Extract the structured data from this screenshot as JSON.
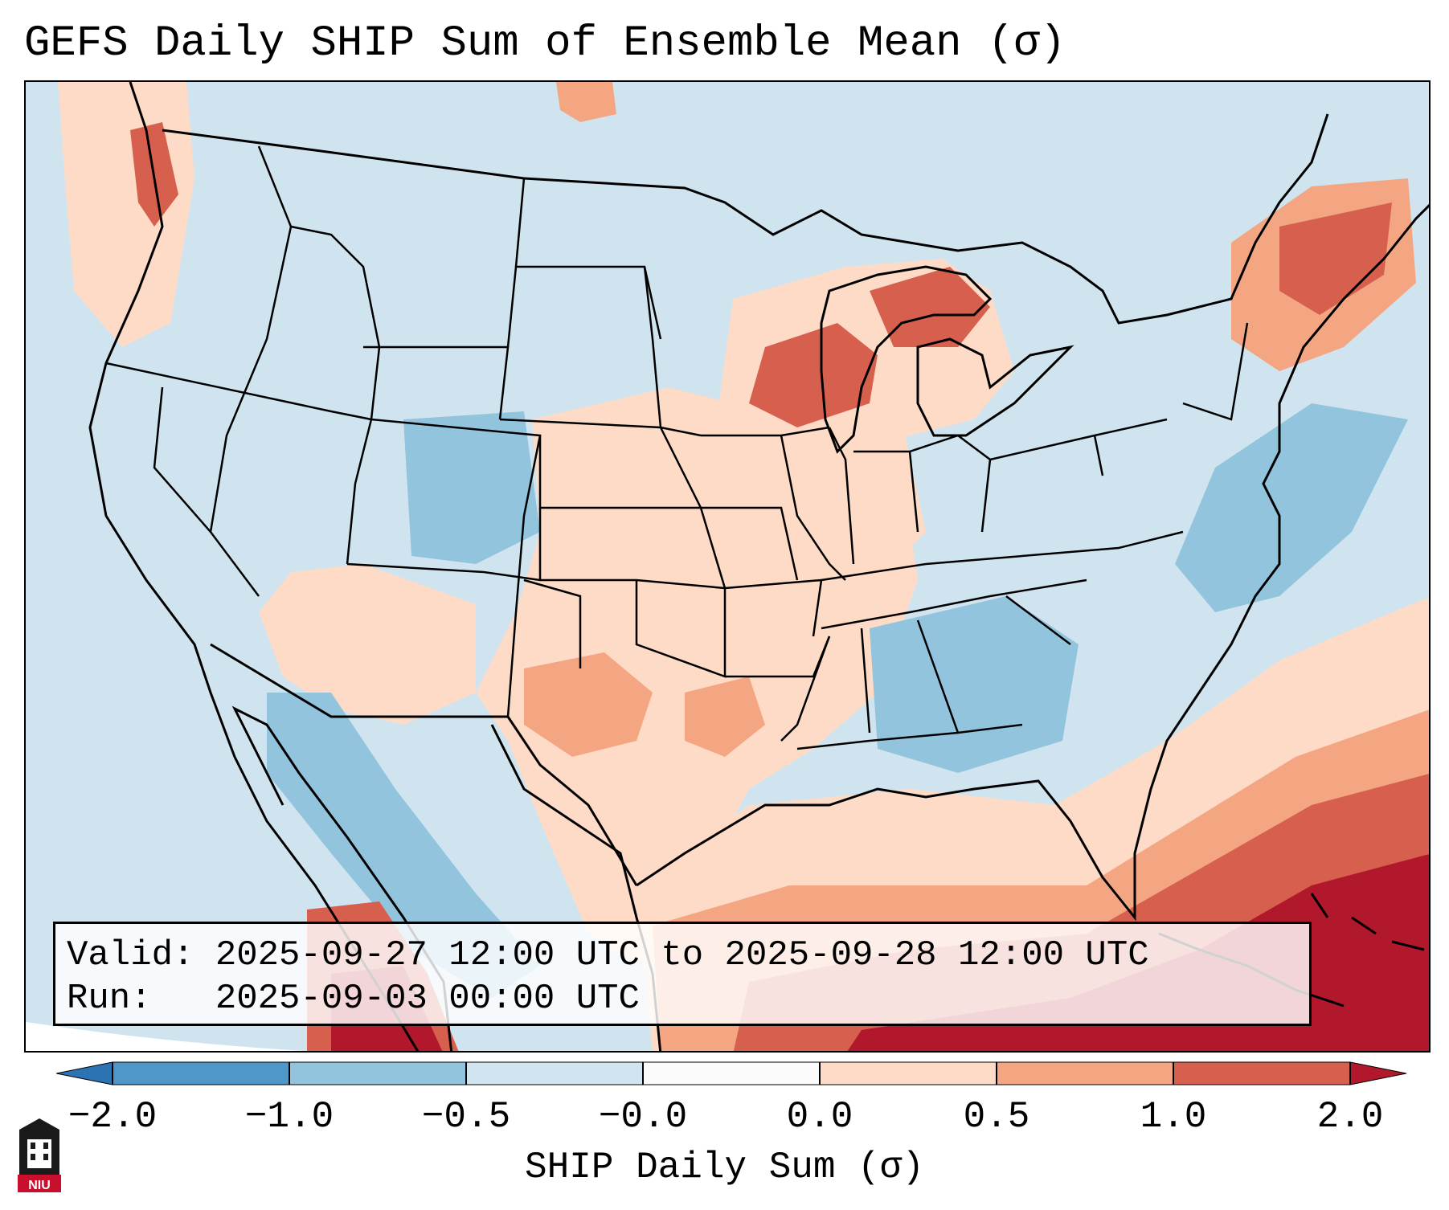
{
  "title": "GEFS Daily SHIP Sum of Ensemble Mean (σ)",
  "info": {
    "valid_label": "Valid:",
    "valid_value": "2025-09-27 12:00 UTC to 2025-09-28 12:00 UTC",
    "run_label": "Run:",
    "run_value": "2025-09-03 00:00 UTC"
  },
  "colorbar": {
    "label": "SHIP Daily Sum (σ)",
    "ticks": [
      "−2.0",
      "−1.0",
      "−0.5",
      "−0.0",
      "0.0",
      "0.5",
      "1.0",
      "2.0"
    ],
    "bins": [
      {
        "color": "#2c73b4"
      },
      {
        "color": "#4f97c9"
      },
      {
        "color": "#92c4de"
      },
      {
        "color": "#d1e5f0"
      },
      {
        "color": "#fbfbfb"
      },
      {
        "color": "#fddbc7"
      },
      {
        "color": "#f4a582"
      },
      {
        "color": "#d6604d"
      },
      {
        "color": "#b2182b"
      }
    ]
  },
  "logo_text": "NIU"
}
